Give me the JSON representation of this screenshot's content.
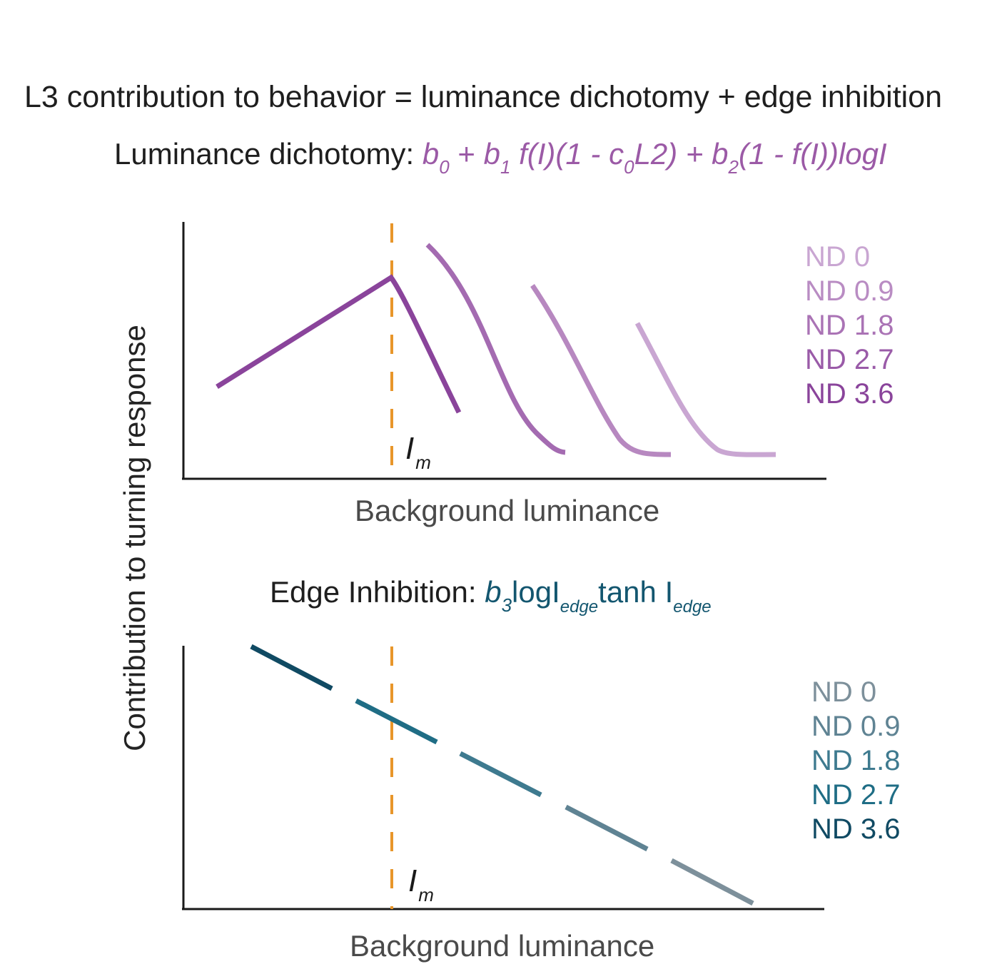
{
  "title": "L3 contribution to behavior =  luminance dichotomy + edge inhibition",
  "luminance_formula": {
    "label": "Luminance dichotomy: ",
    "b0": "b",
    "b0_sub": "0",
    "plus1": " + ",
    "b1": "b",
    "b1_sub": "1",
    "f1": " f(I)(1 - c",
    "c0_sub": "0",
    "l2": "L2) + ",
    "b2": "b",
    "b2_sub": "2",
    "f2": "(1 - f(I))logI"
  },
  "edge_formula": {
    "label": "Edge Inhibition: ",
    "b3": "b",
    "b3_sub": "3",
    "log": "logI",
    "edge_sub1": "edge",
    "tanh": "tanh I",
    "edge_sub2": "edge"
  },
  "axes": {
    "ylabel": "Contribution to turning response",
    "xlabel_top": "Background luminance",
    "xlabel_bottom": "Background luminance",
    "marker_label": "I",
    "marker_sub": "m"
  },
  "legend_top": [
    {
      "label": "ND 0",
      "color": "#c9a6d2"
    },
    {
      "label": "ND 0.9",
      "color": "#b98cc3"
    },
    {
      "label": "ND 1.8",
      "color": "#aa73b5"
    },
    {
      "label": "ND 2.7",
      "color": "#9a5ba8"
    },
    {
      "label": "ND 3.6",
      "color": "#8a449b"
    }
  ],
  "legend_bottom": [
    {
      "label": "ND 0",
      "color": "#7d909b"
    },
    {
      "label": "ND 0.9",
      "color": "#5f8393"
    },
    {
      "label": "ND 1.8",
      "color": "#3e7a8f"
    },
    {
      "label": "ND 2.7",
      "color": "#1f6d85"
    },
    {
      "label": "ND 3.6",
      "color": "#104a63"
    }
  ],
  "colors": {
    "marker_line": "#e8962a",
    "axis": "#1a1a1a"
  }
}
